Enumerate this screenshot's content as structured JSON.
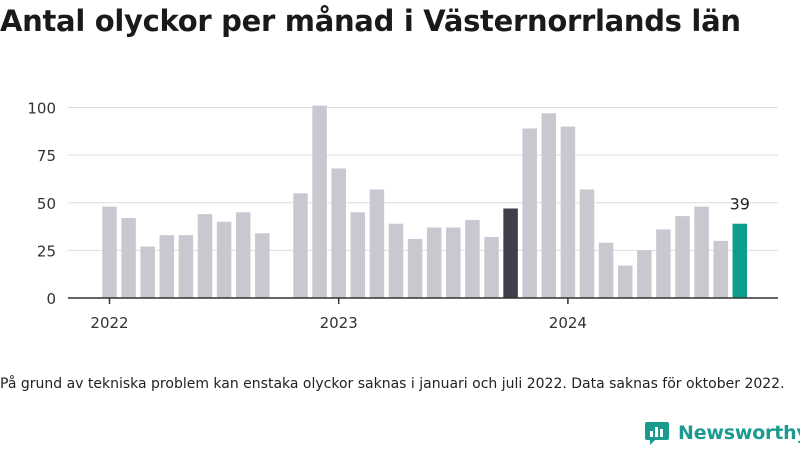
{
  "title": "Antal olyckor per månad i Västernorrlands län",
  "footnote": "På grund av tekniska problem kan enstaka olyckor saknas i januari och juli 2022. Data saknas för oktober 2022.",
  "brand": {
    "name": "Newsworthy",
    "color": "#1a9b8e",
    "icon": "newsworthy-logo-icon"
  },
  "colors": {
    "bar": "#c9c8d1",
    "highlight_previous": "#3f3e4a",
    "highlight_latest": "#0b9e8e",
    "axis": "#333333",
    "grid": "#dddddd"
  },
  "chart_data": {
    "type": "bar",
    "title": "Antal olyckor per månad i Västernorrlands län",
    "xlabel": "",
    "ylabel": "",
    "ylim": [
      0,
      105
    ],
    "yticks": [
      0,
      25,
      50,
      75,
      100
    ],
    "x_tick_labels": [
      {
        "label": "2022",
        "month": "2022-01"
      },
      {
        "label": "2023",
        "month": "2023-01"
      },
      {
        "label": "2024",
        "month": "2024-01"
      }
    ],
    "grid": "horizontal",
    "months": [
      "2022-01",
      "2022-02",
      "2022-03",
      "2022-04",
      "2022-05",
      "2022-06",
      "2022-07",
      "2022-08",
      "2022-09",
      "2022-10",
      "2022-11",
      "2022-12",
      "2023-01",
      "2023-02",
      "2023-03",
      "2023-04",
      "2023-05",
      "2023-06",
      "2023-07",
      "2023-08",
      "2023-09",
      "2023-10",
      "2023-11",
      "2023-12",
      "2024-01",
      "2024-02",
      "2024-03",
      "2024-04",
      "2024-05",
      "2024-06",
      "2024-07",
      "2024-08",
      "2024-09",
      "2024-10"
    ],
    "values": [
      48,
      42,
      27,
      33,
      33,
      44,
      40,
      45,
      34,
      null,
      55,
      101,
      68,
      45,
      57,
      39,
      31,
      37,
      37,
      41,
      32,
      47,
      89,
      97,
      90,
      57,
      29,
      17,
      25,
      36,
      43,
      48,
      30,
      39
    ],
    "highlights": [
      {
        "month": "2023-10",
        "role": "previous-year"
      },
      {
        "month": "2024-10",
        "role": "latest",
        "label": "39"
      }
    ]
  }
}
